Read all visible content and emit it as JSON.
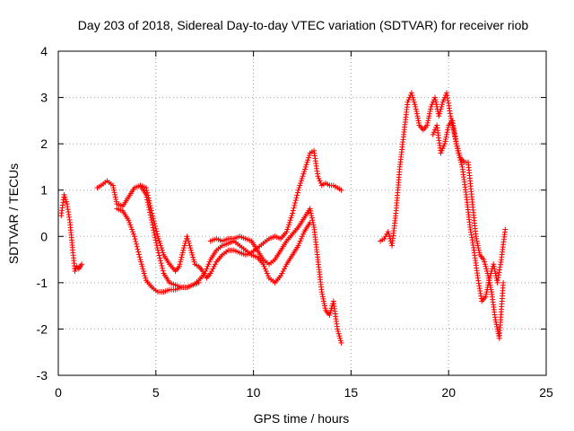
{
  "chart_data": {
    "type": "scatter",
    "title": "Day 203 of 2018, Sidereal Day-to-day VTEC variation (SDTVAR) for receiver riob",
    "xlabel": "GPS time / hours",
    "ylabel": "SDTVAR / TECUs",
    "xlim": [
      0,
      25
    ],
    "ylim": [
      -3,
      4
    ],
    "xticks": [
      "0",
      "5",
      "10",
      "15",
      "20",
      "25"
    ],
    "yticks": [
      "-3",
      "-2",
      "-1",
      "0",
      "1",
      "2",
      "3",
      "4"
    ],
    "grid": true,
    "marker": "+",
    "color": "#ff0000",
    "series": [
      {
        "name": "SDTVAR",
        "segments": [
          {
            "x": [
              0.15,
              0.3,
              0.45,
              0.6,
              0.75,
              0.85,
              0.95,
              1.05,
              1.2
            ],
            "y": [
              0.45,
              0.9,
              0.7,
              0.3,
              -0.35,
              -0.75,
              -0.65,
              -0.7,
              -0.6
            ]
          },
          {
            "x": [
              2.0,
              2.2,
              2.5,
              2.8,
              3.0,
              3.3,
              3.6,
              3.9,
              4.2,
              4.5,
              4.8,
              5.1,
              5.4,
              5.7,
              6.0,
              6.3,
              6.6,
              6.9,
              7.2
            ],
            "y": [
              1.05,
              1.1,
              1.2,
              1.1,
              0.7,
              0.65,
              0.85,
              1.05,
              1.1,
              0.9,
              0.3,
              -0.3,
              -0.8,
              -1.0,
              -1.05,
              -1.1,
              -1.1,
              -1.05,
              -1.0
            ]
          },
          {
            "x": [
              3.0,
              3.3,
              3.6,
              3.9,
              4.2,
              4.5,
              4.8,
              5.1,
              5.4,
              5.7,
              6.0,
              6.3,
              6.6,
              6.9,
              7.2,
              7.5,
              7.8,
              8.1,
              8.4,
              8.7,
              9.0,
              9.3,
              9.6,
              9.9,
              10.2,
              10.5,
              10.8,
              11.1,
              11.4,
              11.7,
              12.0,
              12.3,
              12.6,
              12.9
            ],
            "y": [
              0.6,
              0.55,
              0.35,
              0.0,
              -0.5,
              -0.95,
              -1.1,
              -1.2,
              -1.2,
              -1.15,
              -1.15,
              -1.1,
              -1.1,
              -1.05,
              -0.95,
              -0.8,
              -0.5,
              -0.3,
              -0.2,
              -0.15,
              -0.1,
              -0.2,
              -0.3,
              -0.4,
              -0.45,
              -0.6,
              -0.9,
              -1.0,
              -0.85,
              -0.6,
              -0.4,
              -0.2,
              0.1,
              0.3
            ]
          },
          {
            "x": [
              4.2,
              4.5,
              4.8,
              5.1,
              5.4,
              5.7,
              6.0,
              6.2,
              6.4,
              6.6,
              6.8,
              7.0,
              7.2,
              7.4,
              7.6,
              7.8,
              8.1,
              8.4,
              8.7,
              9.0,
              9.3,
              9.6,
              9.9,
              10.2,
              10.5,
              10.8,
              11.1,
              11.4,
              11.7,
              12.0,
              12.3,
              12.6,
              12.9,
              13.1,
              13.3,
              13.5,
              13.7,
              13.9,
              14.1,
              14.3,
              14.5
            ],
            "y": [
              1.1,
              1.05,
              0.5,
              0.0,
              -0.4,
              -0.6,
              -0.75,
              -0.65,
              -0.3,
              0.0,
              -0.3,
              -0.6,
              -0.65,
              -0.75,
              -0.9,
              -0.8,
              -0.55,
              -0.4,
              -0.3,
              -0.3,
              -0.35,
              -0.4,
              -0.35,
              -0.25,
              -0.15,
              -0.05,
              0.0,
              -0.05,
              0.1,
              0.5,
              1.0,
              1.4,
              1.8,
              1.85,
              1.3,
              1.1,
              1.15,
              1.1,
              1.1,
              1.05,
              1.0
            ]
          },
          {
            "x": [
              7.8,
              8.1,
              8.4,
              8.7,
              9.0,
              9.3,
              9.6,
              9.9,
              10.2,
              10.5,
              10.8,
              11.1,
              11.4,
              11.7,
              12.0,
              12.3,
              12.6,
              12.9,
              13.1,
              13.3,
              13.5,
              13.7,
              13.9,
              14.1,
              14.3,
              14.5
            ],
            "y": [
              -0.1,
              -0.05,
              -0.1,
              -0.05,
              -0.05,
              0.0,
              -0.05,
              -0.1,
              -0.3,
              -0.5,
              -0.6,
              -0.5,
              -0.3,
              -0.1,
              0.05,
              0.2,
              0.4,
              0.6,
              0.2,
              -0.5,
              -1.2,
              -1.6,
              -1.7,
              -1.4,
              -2.0,
              -2.3
            ]
          },
          {
            "x": [
              16.5,
              16.7,
              16.9,
              17.1,
              17.3,
              17.5,
              17.7,
              17.9,
              18.1,
              18.3,
              18.5,
              18.7,
              18.9,
              19.1,
              19.3,
              19.5,
              19.7,
              19.9,
              20.1,
              20.3,
              20.5,
              20.7,
              20.9,
              21.1,
              21.3,
              21.5,
              21.7,
              21.9,
              22.1,
              22.3,
              22.5,
              22.7,
              22.9
            ],
            "y": [
              -0.1,
              -0.05,
              0.1,
              -0.2,
              0.5,
              1.5,
              2.2,
              2.9,
              3.1,
              2.8,
              2.4,
              2.3,
              2.4,
              2.8,
              3.0,
              2.6,
              2.9,
              3.1,
              2.6,
              2.2,
              1.8,
              1.5,
              0.9,
              0.2,
              -0.3,
              -0.9,
              -1.4,
              -1.3,
              -0.9,
              -0.6,
              -1.0,
              -0.5,
              0.15
            ]
          },
          {
            "x": [
              19.2,
              19.4,
              19.6,
              19.8,
              20.0,
              20.2,
              20.4,
              20.6,
              20.8,
              21.0,
              21.2,
              21.4,
              21.6,
              21.8,
              22.0,
              22.2,
              22.4,
              22.6,
              22.8
            ],
            "y": [
              2.2,
              2.4,
              1.8,
              2.0,
              2.4,
              2.5,
              2.0,
              1.7,
              1.6,
              1.6,
              0.8,
              0.0,
              -0.4,
              -0.5,
              -0.8,
              -1.2,
              -1.8,
              -2.2,
              -1.0
            ]
          }
        ]
      }
    ]
  }
}
